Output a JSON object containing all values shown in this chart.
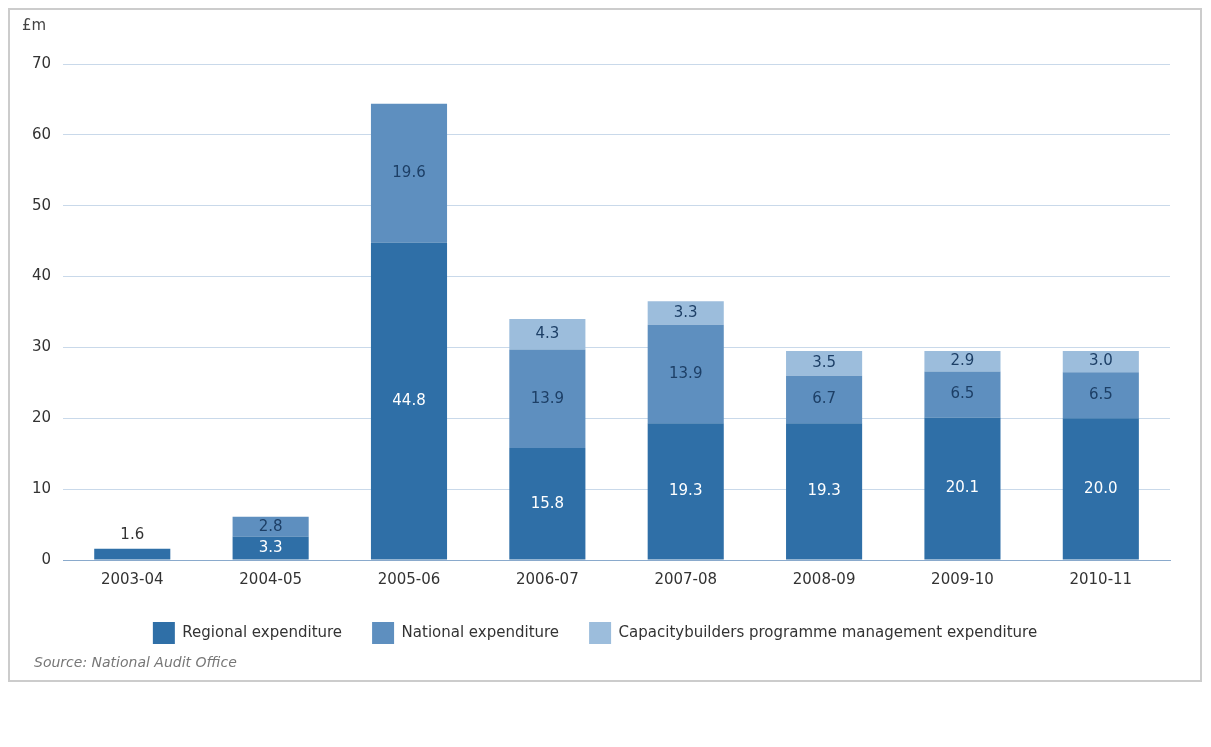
{
  "chart_data": {
    "type": "bar",
    "stacked": true,
    "ylabel": "£m",
    "categories": [
      "2003-04",
      "2004-05",
      "2005-06",
      "2006-07",
      "2007-08",
      "2008-09",
      "2009-10",
      "2010-11"
    ],
    "series": [
      {
        "name": "Regional expenditure",
        "color": "#2f6fa7",
        "values": [
          1.6,
          3.3,
          44.8,
          15.8,
          19.3,
          19.3,
          20.1,
          20.0
        ],
        "value_labels": [
          "1.6",
          "3.3",
          "44.8",
          "15.8",
          "19.3",
          "19.3",
          "20.1",
          "20.0"
        ]
      },
      {
        "name": "National expenditure",
        "color": "#5e8fbf",
        "values": [
          null,
          2.8,
          19.6,
          13.9,
          13.9,
          6.7,
          6.5,
          6.5
        ],
        "value_labels": [
          null,
          "2.8",
          "19.6",
          "13.9",
          "13.9",
          "6.7",
          "6.5",
          "6.5"
        ]
      },
      {
        "name": "Capacitybuilders programme management expenditure",
        "color": "#9cbddc",
        "values": [
          null,
          null,
          null,
          4.3,
          3.3,
          3.5,
          2.9,
          3.0
        ],
        "value_labels": [
          null,
          null,
          null,
          "4.3",
          "3.3",
          "3.5",
          "2.9",
          "3.0"
        ]
      }
    ],
    "ylim": [
      0,
      70
    ],
    "yticks": [
      0,
      10,
      20,
      30,
      40,
      50,
      60,
      70
    ],
    "grid": "y",
    "legend": "bottom",
    "annotations": [
      "Source: National Audit Office"
    ]
  }
}
